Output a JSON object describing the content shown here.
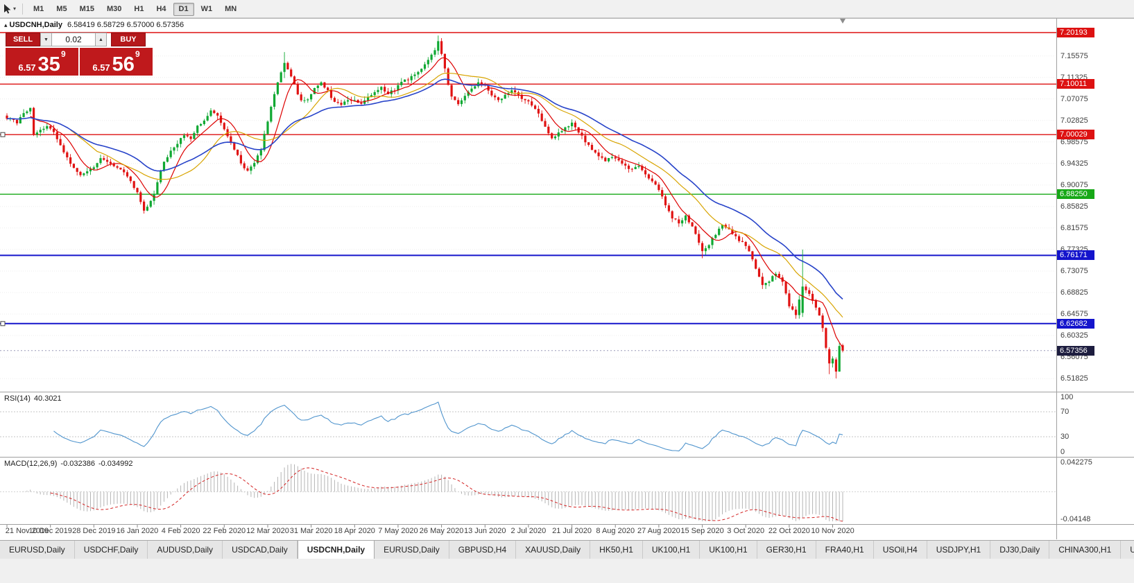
{
  "icons": {
    "collapse": "▴",
    "caret_down": "▼",
    "caret_up": "▲",
    "tool_caret": "▾",
    "tab_scroll_left": "◂"
  },
  "toolbar": {
    "timeframes": [
      {
        "label": "M1",
        "active": false
      },
      {
        "label": "M5",
        "active": false
      },
      {
        "label": "M15",
        "active": false
      },
      {
        "label": "M30",
        "active": false
      },
      {
        "label": "H1",
        "active": false
      },
      {
        "label": "H4",
        "active": false
      },
      {
        "label": "D1",
        "active": true
      },
      {
        "label": "W1",
        "active": false
      },
      {
        "label": "MN",
        "active": false
      }
    ]
  },
  "chart": {
    "title": {
      "symbol": "USDCNH,Daily",
      "ohlc": "6.58419 6.58729 6.57000 6.57356"
    },
    "trade_panel": {
      "sell_label": "SELL",
      "buy_label": "BUY",
      "volume": "0.02",
      "bid": {
        "small": "6.57",
        "big": "35",
        "sup": "9"
      },
      "ask": {
        "small": "6.57",
        "big": "56",
        "sup": "9"
      }
    },
    "price_axis": {
      "ticks": [
        "7.15575",
        "7.11325",
        "7.07075",
        "7.02825",
        "6.98575",
        "6.94325",
        "6.90075",
        "6.85825",
        "6.81575",
        "6.77325",
        "6.73075",
        "6.68825",
        "6.64575",
        "6.60325",
        "6.56075",
        "6.51825"
      ],
      "current": {
        "value": "6.57356",
        "color": "#1d1d3f"
      }
    },
    "levels": [
      {
        "price": 7.20193,
        "label": "7.20193",
        "color": "#dd1111",
        "width": 1.4,
        "handle": false
      },
      {
        "price": 7.10011,
        "label": "7.10011",
        "color": "#dd1111",
        "width": 1.4,
        "handle": false
      },
      {
        "price": 7.00029,
        "label": "7.00029",
        "color": "#dd1111",
        "width": 1.4,
        "handle": true
      },
      {
        "price": 6.8825,
        "label": "6.88250",
        "color": "#17a817",
        "width": 1.4,
        "handle": false
      },
      {
        "price": 6.76171,
        "label": "6.76171",
        "color": "#1414cc",
        "width": 2,
        "handle": false
      },
      {
        "price": 6.62682,
        "label": "6.62682",
        "color": "#1414cc",
        "width": 2,
        "handle": true
      }
    ],
    "dates": [
      "21 Nov 2019",
      "10 Dec 2019",
      "28 Dec 2019",
      "16 Jan 2020",
      "4 Feb 2020",
      "22 Feb 2020",
      "12 Mar 2020",
      "31 Mar 2020",
      "18 Apr 2020",
      "7 May 2020",
      "26 May 2020",
      "13 Jun 2020",
      "2 Jul 2020",
      "21 Jul 2020",
      "8 Aug 2020",
      "27 Aug 2020",
      "15 Sep 2020",
      "3 Oct 2020",
      "22 Oct 2020",
      "10 Nov 2020"
    ]
  },
  "indicators": {
    "rsi": {
      "name": "RSI(14)",
      "value": "40.3021",
      "axis": [
        "100",
        "70",
        "30",
        "0"
      ],
      "levels": [
        70,
        30
      ],
      "color": "#4f94cd"
    },
    "macd": {
      "name": "MACD(12,26,9)",
      "value_main": "-0.032386",
      "value_signal": "-0.034992",
      "axis_top": "0.042275",
      "axis_bottom": "-0.04148",
      "hist_color": "#b4b4b4",
      "signal_color": "#d42424"
    }
  },
  "chart_data": {
    "type": "candlestick",
    "symbol": "USDCNH",
    "timeframe": "Daily",
    "title": "USDCNH,Daily",
    "x_range": [
      "21 Nov 2019",
      "13 Nov 2020"
    ],
    "x_tick_labels": [
      "21 Nov 2019",
      "10 Dec 2019",
      "28 Dec 2019",
      "16 Jan 2020",
      "4 Feb 2020",
      "22 Feb 2020",
      "12 Mar 2020",
      "31 Mar 2020",
      "18 Apr 2020",
      "7 May 2020",
      "26 May 2020",
      "13 Jun 2020",
      "2 Jul 2020",
      "21 Jul 2020",
      "8 Aug 2020",
      "27 Aug 2020",
      "15 Sep 2020",
      "3 Oct 2020",
      "22 Oct 2020",
      "10 Nov 2020"
    ],
    "y_ticks": [
      7.15575,
      7.11325,
      7.07075,
      7.02825,
      6.98575,
      6.94325,
      6.90075,
      6.85825,
      6.81575,
      6.77325,
      6.73075,
      6.68825,
      6.64575,
      6.60325,
      6.56075,
      6.51825
    ],
    "horizontal_levels": [
      7.20193,
      7.10011,
      7.00029,
      6.8825,
      6.76171,
      6.62682
    ],
    "last_bar_ohlc": {
      "open": 6.58419,
      "high": 6.58729,
      "low": 6.57,
      "close": 6.57356
    },
    "up_color": "#0fa832",
    "down_color": "#e01212",
    "candles": {
      "count": 251,
      "seed": 123456789,
      "noise": 0.005,
      "wick": 0.008,
      "close_anchors": [
        [
          0,
          7.034
        ],
        [
          3,
          7.024
        ],
        [
          5,
          7.042
        ],
        [
          7,
          7.052
        ],
        [
          8,
          6.998
        ],
        [
          10,
          7.008
        ],
        [
          12,
          7.018
        ],
        [
          14,
          7.004
        ],
        [
          16,
          6.978
        ],
        [
          18,
          6.955
        ],
        [
          20,
          6.934
        ],
        [
          22,
          6.922
        ],
        [
          25,
          6.93
        ],
        [
          28,
          6.952
        ],
        [
          30,
          6.946
        ],
        [
          33,
          6.936
        ],
        [
          35,
          6.924
        ],
        [
          37,
          6.908
        ],
        [
          39,
          6.886
        ],
        [
          41,
          6.85
        ],
        [
          42,
          6.856
        ],
        [
          44,
          6.882
        ],
        [
          46,
          6.932
        ],
        [
          48,
          6.958
        ],
        [
          50,
          6.976
        ],
        [
          53,
          7.0
        ],
        [
          55,
          6.992
        ],
        [
          57,
          7.016
        ],
        [
          59,
          7.028
        ],
        [
          61,
          7.046
        ],
        [
          63,
          7.038
        ],
        [
          65,
          7.012
        ],
        [
          67,
          6.986
        ],
        [
          69,
          6.958
        ],
        [
          71,
          6.934
        ],
        [
          72,
          6.928
        ],
        [
          74,
          6.944
        ],
        [
          76,
          6.972
        ],
        [
          78,
          7.028
        ],
        [
          80,
          7.082
        ],
        [
          82,
          7.122
        ],
        [
          83,
          7.142
        ],
        [
          84,
          7.128
        ],
        [
          86,
          7.098
        ],
        [
          88,
          7.066
        ],
        [
          90,
          7.072
        ],
        [
          92,
          7.09
        ],
        [
          94,
          7.104
        ],
        [
          96,
          7.086
        ],
        [
          98,
          7.064
        ],
        [
          100,
          7.058
        ],
        [
          102,
          7.07
        ],
        [
          104,
          7.068
        ],
        [
          106,
          7.062
        ],
        [
          108,
          7.074
        ],
        [
          110,
          7.086
        ],
        [
          112,
          7.094
        ],
        [
          114,
          7.082
        ],
        [
          116,
          7.09
        ],
        [
          118,
          7.104
        ],
        [
          120,
          7.11
        ],
        [
          122,
          7.118
        ],
        [
          124,
          7.13
        ],
        [
          126,
          7.148
        ],
        [
          128,
          7.168
        ],
        [
          129,
          7.185
        ],
        [
          130,
          7.16
        ],
        [
          131,
          7.132
        ],
        [
          132,
          7.098
        ],
        [
          133,
          7.076
        ],
        [
          135,
          7.062
        ],
        [
          137,
          7.076
        ],
        [
          139,
          7.09
        ],
        [
          141,
          7.104
        ],
        [
          143,
          7.096
        ],
        [
          145,
          7.08
        ],
        [
          147,
          7.068
        ],
        [
          149,
          7.078
        ],
        [
          151,
          7.09
        ],
        [
          153,
          7.078
        ],
        [
          155,
          7.068
        ],
        [
          157,
          7.06
        ],
        [
          159,
          7.042
        ],
        [
          161,
          7.014
        ],
        [
          163,
          6.994
        ],
        [
          165,
          7.004
        ],
        [
          167,
          7.014
        ],
        [
          169,
          7.022
        ],
        [
          171,
          7.006
        ],
        [
          173,
          6.986
        ],
        [
          175,
          6.97
        ],
        [
          177,
          6.956
        ],
        [
          179,
          6.95
        ],
        [
          181,
          6.958
        ],
        [
          183,
          6.948
        ],
        [
          185,
          6.938
        ],
        [
          187,
          6.93
        ],
        [
          189,
          6.938
        ],
        [
          191,
          6.922
        ],
        [
          193,
          6.91
        ],
        [
          195,
          6.89
        ],
        [
          197,
          6.862
        ],
        [
          199,
          6.836
        ],
        [
          201,
          6.826
        ],
        [
          203,
          6.84
        ],
        [
          205,
          6.818
        ],
        [
          207,
          6.786
        ],
        [
          208,
          6.77
        ],
        [
          210,
          6.784
        ],
        [
          212,
          6.804
        ],
        [
          214,
          6.822
        ],
        [
          216,
          6.812
        ],
        [
          218,
          6.798
        ],
        [
          220,
          6.786
        ],
        [
          222,
          6.77
        ],
        [
          224,
          6.736
        ],
        [
          226,
          6.702
        ],
        [
          228,
          6.712
        ],
        [
          230,
          6.726
        ],
        [
          232,
          6.708
        ],
        [
          234,
          6.662
        ],
        [
          236,
          6.645
        ],
        [
          238,
          6.7
        ],
        [
          240,
          6.684
        ],
        [
          242,
          6.66
        ],
        [
          243,
          6.644
        ],
        [
          244,
          6.616
        ],
        [
          245,
          6.578
        ],
        [
          246,
          6.548
        ],
        [
          247,
          6.556
        ],
        [
          248,
          6.532
        ],
        [
          249,
          6.583
        ],
        [
          250,
          6.57356
        ]
      ],
      "overrides": {
        "41": {
          "o": 6.868,
          "h": 6.872,
          "l": 6.8443,
          "c": 6.85
        },
        "83": {
          "o": 7.124,
          "h": 7.1635,
          "l": 7.112,
          "c": 7.142
        },
        "129": {
          "o": 7.166,
          "h": 7.1962,
          "l": 7.158,
          "c": 7.185
        },
        "208": {
          "o": 6.786,
          "h": 6.79,
          "l": 6.756,
          "c": 6.77
        },
        "238": {
          "o": 6.648,
          "h": 6.7732,
          "l": 6.64,
          "c": 6.7
        },
        "246": {
          "o": 6.576,
          "h": 6.58,
          "l": 6.527,
          "c": 6.548
        },
        "248": {
          "o": 6.556,
          "h": 6.56,
          "l": 6.5185,
          "c": 6.532
        },
        "250": {
          "o": 6.58419,
          "h": 6.58729,
          "l": 6.57,
          "c": 6.57356
        }
      }
    },
    "moving_averages": [
      {
        "period": 8,
        "type": "sma",
        "color": "#dd0000",
        "width": 1.2
      },
      {
        "period": 20,
        "type": "sma",
        "color": "#d8a400",
        "width": 1.2
      },
      {
        "period": 34,
        "type": "ema",
        "color": "#2743c9",
        "width": 1.6
      }
    ],
    "indicators": [
      {
        "name": "RSI",
        "period": 14,
        "last_value": 40.3021,
        "range": [
          0,
          100
        ],
        "levels": [
          70,
          30
        ]
      },
      {
        "name": "MACD",
        "fast": 12,
        "slow": 26,
        "signal": 9,
        "last_main": -0.032386,
        "last_signal": -0.034992,
        "range": [
          -0.04148,
          0.042275
        ]
      }
    ]
  },
  "tabs": {
    "items": [
      {
        "label": "EURUSD,Daily",
        "active": false
      },
      {
        "label": "USDCHF,Daily",
        "active": false
      },
      {
        "label": "AUDUSD,Daily",
        "active": false
      },
      {
        "label": "USDCAD,Daily",
        "active": false
      },
      {
        "label": "USDCNH,Daily",
        "active": true
      },
      {
        "label": "EURUSD,Daily",
        "active": false
      },
      {
        "label": "GBPUSD,H4",
        "active": false
      },
      {
        "label": "XAUUSD,Daily",
        "active": false
      },
      {
        "label": "HK50,H1",
        "active": false
      },
      {
        "label": "UK100,H1",
        "active": false
      },
      {
        "label": "UK100,H1",
        "active": false
      },
      {
        "label": "GER30,H1",
        "active": false
      },
      {
        "label": "FRA40,H1",
        "active": false
      },
      {
        "label": "USOil,H4",
        "active": false
      },
      {
        "label": "USDJPY,H1",
        "active": false
      },
      {
        "label": "DJ30,Daily",
        "active": false
      },
      {
        "label": "CHINA300,H1",
        "active": false
      },
      {
        "label": "USOil,Da",
        "active": false
      }
    ]
  }
}
